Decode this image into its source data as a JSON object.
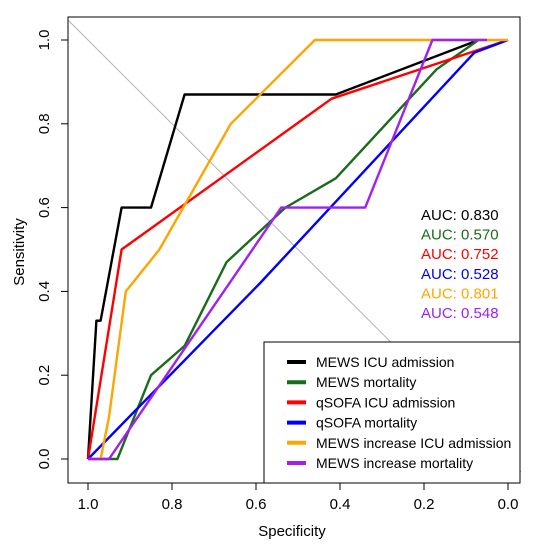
{
  "chart_data": {
    "type": "line",
    "xlabel": "Specificity",
    "ylabel": "Sensitivity",
    "x_reversed": true,
    "xlim": [
      1.0,
      0.0
    ],
    "ylim": [
      0.0,
      1.0
    ],
    "x_ticks": [
      "1.0",
      "0.8",
      "0.6",
      "0.4",
      "0.2",
      "0.0"
    ],
    "y_ticks": [
      "0.0",
      "0.2",
      "0.4",
      "0.6",
      "0.8",
      "1.0"
    ],
    "grid": false,
    "diagonal_reference": true,
    "legend_position": "bottom-right",
    "series": [
      {
        "name": "MEWS ICU admission",
        "color": "#000000",
        "auc_label": "AUC: 0.830",
        "points": [
          [
            1.0,
            0.0
          ],
          [
            0.98,
            0.33
          ],
          [
            0.97,
            0.33
          ],
          [
            0.92,
            0.6
          ],
          [
            0.85,
            0.6
          ],
          [
            0.77,
            0.87
          ],
          [
            0.41,
            0.87
          ],
          [
            0.07,
            1.0
          ]
        ]
      },
      {
        "name": "MEWS mortality",
        "color": "#1a6b1a",
        "auc_label": "AUC: 0.570",
        "points": [
          [
            1.0,
            0.0
          ],
          [
            0.93,
            0.0
          ],
          [
            0.85,
            0.2
          ],
          [
            0.77,
            0.27
          ],
          [
            0.67,
            0.47
          ],
          [
            0.53,
            0.6
          ],
          [
            0.41,
            0.67
          ],
          [
            0.17,
            0.93
          ],
          [
            0.07,
            1.0
          ]
        ]
      },
      {
        "name": "qSOFA ICU admission",
        "color": "#ff0000",
        "auc_label": "AUC: 0.752",
        "points": [
          [
            1.0,
            0.0
          ],
          [
            0.92,
            0.5
          ],
          [
            0.42,
            0.86
          ],
          [
            0.0,
            1.0
          ]
        ]
      },
      {
        "name": "qSOFA mortality",
        "color": "#0000ff",
        "auc_label": "AUC: 0.528",
        "points": [
          [
            1.0,
            0.0
          ],
          [
            0.59,
            0.42
          ],
          [
            0.08,
            0.97
          ],
          [
            0.0,
            1.0
          ]
        ]
      },
      {
        "name": "MEWS increase ICU admission",
        "color": "#ffa500",
        "auc_label": "AUC: 0.801",
        "points": [
          [
            1.0,
            0.0
          ],
          [
            0.97,
            0.0
          ],
          [
            0.95,
            0.1
          ],
          [
            0.91,
            0.4
          ],
          [
            0.83,
            0.5
          ],
          [
            0.66,
            0.8
          ],
          [
            0.46,
            1.0
          ],
          [
            0.0,
            1.0
          ]
        ]
      },
      {
        "name": "MEWS increase mortality",
        "color": "#a020f0",
        "auc_label": "AUC: 0.548",
        "points": [
          [
            1.0,
            0.0
          ],
          [
            0.95,
            0.0
          ],
          [
            0.54,
            0.6
          ],
          [
            0.34,
            0.6
          ],
          [
            0.18,
            1.0
          ],
          [
            0.05,
            1.0
          ]
        ]
      }
    ]
  }
}
